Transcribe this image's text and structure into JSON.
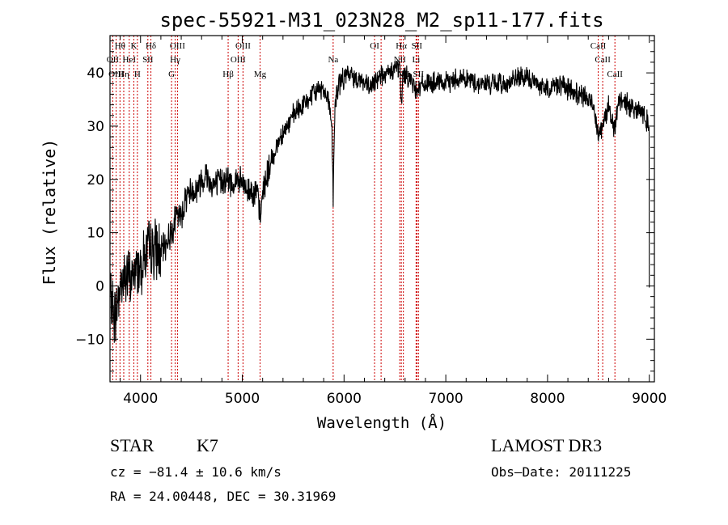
{
  "chart_data": {
    "type": "line",
    "title": "spec-55921-M31_023N28_M2_sp11-177.fits",
    "xlabel": "Wavelength (Å)",
    "ylabel": "Flux (relative)",
    "xlim": [
      3700,
      9050
    ],
    "ylim": [
      -18,
      47
    ],
    "xticks": [
      4000,
      5000,
      6000,
      7000,
      8000,
      9000
    ],
    "xtick_labels": [
      "4000",
      "5000",
      "6000",
      "7000",
      "8000",
      "9000"
    ],
    "yticks": [
      -10,
      0,
      10,
      20,
      30,
      40
    ],
    "ytick_labels": [
      "−10",
      "0",
      "10",
      "20",
      "30",
      "40"
    ],
    "series": [
      {
        "name": "flux",
        "x": [
          3700,
          3750,
          3800,
          3850,
          3900,
          3950,
          4000,
          4050,
          4100,
          4150,
          4200,
          4250,
          4300,
          4350,
          4400,
          4450,
          4500,
          4550,
          4600,
          4650,
          4700,
          4750,
          4800,
          4850,
          4900,
          4950,
          5000,
          5050,
          5100,
          5150,
          5180,
          5200,
          5250,
          5300,
          5350,
          5400,
          5450,
          5500,
          5550,
          5600,
          5650,
          5700,
          5750,
          5800,
          5850,
          5880,
          5893,
          5910,
          5950,
          6000,
          6050,
          6100,
          6150,
          6200,
          6250,
          6300,
          6350,
          6400,
          6450,
          6500,
          6550,
          6563,
          6580,
          6650,
          6700,
          6800,
          6900,
          7000,
          7100,
          7200,
          7300,
          7400,
          7500,
          7600,
          7700,
          7800,
          7900,
          8000,
          8100,
          8200,
          8300,
          8400,
          8450,
          8498,
          8542,
          8600,
          8662,
          8700,
          8800,
          8900,
          8950,
          9000
        ],
        "y": [
          -2,
          -6,
          0,
          2,
          1,
          3,
          4,
          6,
          7,
          7,
          6,
          8,
          10,
          13,
          13,
          17,
          18,
          18,
          20,
          21,
          19,
          19,
          20,
          20,
          19,
          20,
          19,
          18,
          18,
          17,
          12,
          18,
          21,
          24,
          27,
          29,
          30,
          32,
          33,
          34,
          35,
          36,
          37,
          37,
          35,
          30,
          16,
          34,
          38,
          39,
          40,
          39,
          39,
          38,
          37,
          38,
          40,
          39,
          40,
          41,
          41,
          33,
          40,
          39,
          37,
          38,
          38,
          38,
          39,
          39,
          38,
          38,
          38,
          38,
          39,
          39,
          38,
          37,
          38,
          37,
          36,
          35,
          34,
          29,
          30,
          34,
          29,
          35,
          34,
          33,
          32,
          30
        ]
      }
    ],
    "lines": [
      {
        "label": "Hθ",
        "wave": 3798,
        "row": 0
      },
      {
        "label": "OII",
        "wave": 3727,
        "row": 1
      },
      {
        "label": "OIII",
        "wave": 3760,
        "row": 2
      },
      {
        "label": "K",
        "wave": 3934,
        "row": 0
      },
      {
        "label": "Hη",
        "wave": 3835,
        "row": 2
      },
      {
        "label": "HeI",
        "wave": 3889,
        "row": 1
      },
      {
        "label": "H",
        "wave": 3969,
        "row": 2
      },
      {
        "label": "SII",
        "wave": 4072,
        "row": 1
      },
      {
        "label": "Hδ",
        "wave": 4102,
        "row": 0
      },
      {
        "label": "OIII",
        "wave": 4363,
        "row": 0
      },
      {
        "label": "Hγ",
        "wave": 4340,
        "row": 1
      },
      {
        "label": "G",
        "wave": 4305,
        "row": 2
      },
      {
        "label": "Hβ",
        "wave": 4861,
        "row": 2
      },
      {
        "label": "OIII",
        "wave": 5007,
        "row": 0
      },
      {
        "label": "OIII",
        "wave": 4959,
        "row": 1
      },
      {
        "label": "Mg",
        "wave": 5175,
        "row": 2
      },
      {
        "label": "Na",
        "wave": 5893,
        "row": 1
      },
      {
        "label": "OI",
        "wave": 6300,
        "row": 0
      },
      {
        "label": "OI",
        "wave": 6364,
        "row": 2
      },
      {
        "label": "Hα",
        "wave": 6563,
        "row": 0
      },
      {
        "label": "NII",
        "wave": 6548,
        "row": 1
      },
      {
        "label": "NII",
        "wave": 6583,
        "row": 2
      },
      {
        "label": "SII",
        "wave": 6716,
        "row": 0
      },
      {
        "label": "Li",
        "wave": 6708,
        "row": 1
      },
      {
        "label": "SII",
        "wave": 6731,
        "row": 2
      },
      {
        "label": "CaII",
        "wave": 8498,
        "row": 0
      },
      {
        "label": "CaII",
        "wave": 8542,
        "row": 1
      },
      {
        "label": "CaII",
        "wave": 8662,
        "row": 2
      }
    ]
  },
  "info": {
    "class": "STAR",
    "subclass": "K7",
    "survey": "LAMOST DR3",
    "cz": "cz = −81.4 ± 10.6 km/s",
    "obs_date": "Obs–Date: 20111225",
    "coords": "RA =  24.00448, DEC =  30.31969"
  },
  "colors": {
    "line": "#cc0000",
    "spectrum": "#000000"
  }
}
